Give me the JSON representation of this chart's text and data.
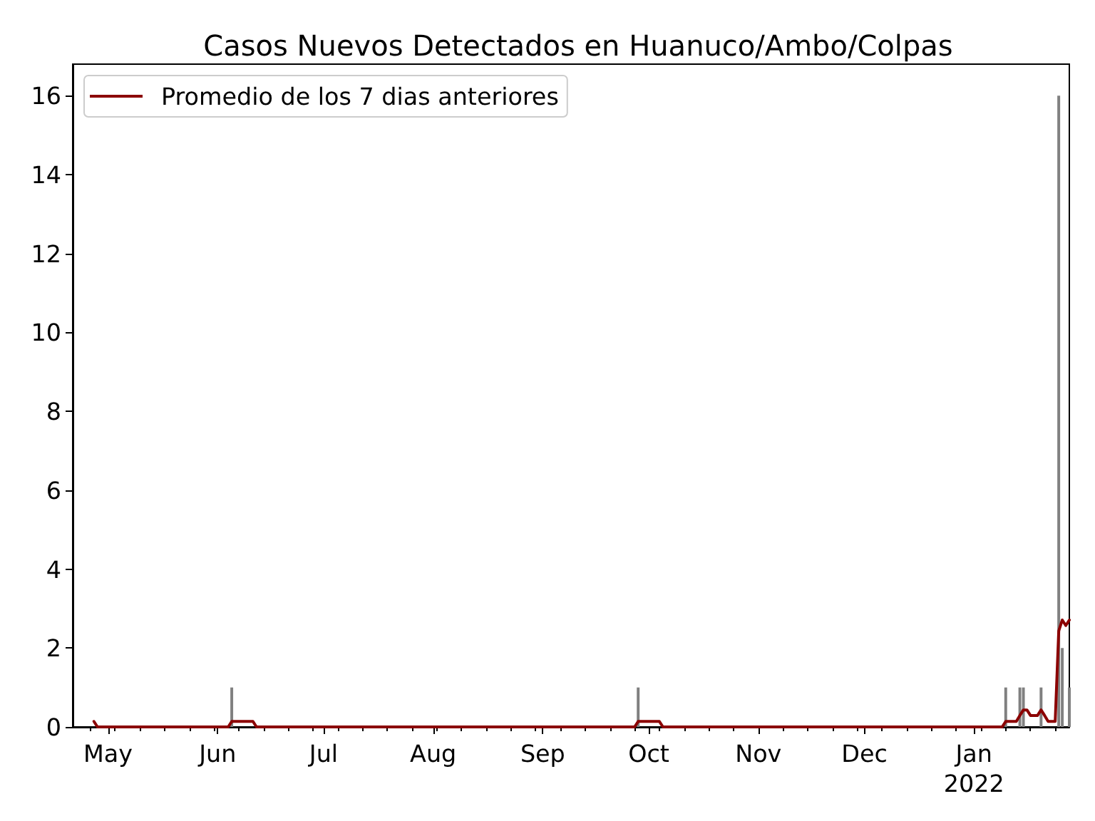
{
  "chart_data": {
    "type": "bar",
    "title": "Casos Nuevos Detectados en Huanuco/Ambo/Colpas",
    "xlim": [
      "2021-04-21",
      "2022-01-28"
    ],
    "xticks": [
      {
        "value": "2021-05-01",
        "label": "May"
      },
      {
        "value": "2021-06-01",
        "label": "Jun"
      },
      {
        "value": "2021-07-01",
        "label": "Jul"
      },
      {
        "value": "2021-08-01",
        "label": "Aug"
      },
      {
        "value": "2021-09-01",
        "label": "Sep"
      },
      {
        "value": "2021-10-01",
        "label": "Oct"
      },
      {
        "value": "2021-11-01",
        "label": "Nov"
      },
      {
        "value": "2021-12-01",
        "label": "Dec"
      },
      {
        "value": "2022-01-01",
        "label": "Jan\n2022"
      },
      {
        "value": "2021-04-26",
        "label": null
      },
      {
        "value": "2021-05-03",
        "label": null
      },
      {
        "value": "2021-05-10",
        "label": null
      },
      {
        "value": "2021-05-17",
        "label": null
      },
      {
        "value": "2021-05-24",
        "label": null
      },
      {
        "value": "2021-05-31",
        "label": null
      },
      {
        "value": "2021-06-07",
        "label": null
      },
      {
        "value": "2021-06-14",
        "label": null
      },
      {
        "value": "2021-06-21",
        "label": null
      },
      {
        "value": "2021-06-28",
        "label": null
      },
      {
        "value": "2021-07-05",
        "label": null
      },
      {
        "value": "2021-07-12",
        "label": null
      },
      {
        "value": "2021-07-19",
        "label": null
      },
      {
        "value": "2021-07-26",
        "label": null
      },
      {
        "value": "2021-08-02",
        "label": null
      },
      {
        "value": "2021-08-09",
        "label": null
      },
      {
        "value": "2021-08-16",
        "label": null
      },
      {
        "value": "2021-08-23",
        "label": null
      },
      {
        "value": "2021-08-30",
        "label": null
      },
      {
        "value": "2021-09-06",
        "label": null
      },
      {
        "value": "2021-09-13",
        "label": null
      },
      {
        "value": "2021-09-20",
        "label": null
      },
      {
        "value": "2021-09-27",
        "label": null
      },
      {
        "value": "2021-10-04",
        "label": null
      },
      {
        "value": "2021-10-11",
        "label": null
      },
      {
        "value": "2021-10-18",
        "label": null
      },
      {
        "value": "2021-10-25",
        "label": null
      },
      {
        "value": "2021-11-08",
        "label": null
      },
      {
        "value": "2021-11-15",
        "label": null
      },
      {
        "value": "2021-11-22",
        "label": null
      },
      {
        "value": "2021-11-29",
        "label": null
      },
      {
        "value": "2021-12-06",
        "label": null
      },
      {
        "value": "2021-12-13",
        "label": null
      },
      {
        "value": "2021-12-20",
        "label": null
      },
      {
        "value": "2021-12-27",
        "label": null
      },
      {
        "value": "2022-01-03",
        "label": null
      },
      {
        "value": "2022-01-10",
        "label": null
      },
      {
        "value": "2022-01-17",
        "label": null
      },
      {
        "value": "2022-01-24",
        "label": null
      }
    ],
    "ylim": [
      0,
      16.8
    ],
    "yticks": [
      0,
      2,
      4,
      6,
      8,
      10,
      12,
      14,
      16
    ],
    "legend": "top left",
    "series": [
      {
        "color": "#808080",
        "x": [
          "2021-06-05",
          "2021-09-28",
          "2022-01-10",
          "2022-01-14",
          "2022-01-15",
          "2022-01-20",
          "2022-01-25",
          "2022-01-26",
          "2022-01-28"
        ],
        "values": [
          1,
          1,
          1,
          1,
          1,
          1,
          16,
          2,
          1
        ]
      },
      {
        "type": "line",
        "name": "Promedio de los 7 dias anteriores",
        "color": "#8b0000",
        "line_style": "solid",
        "x": [
          "2021-04-27",
          "2021-04-28",
          "2021-06-04",
          "2021-06-05",
          "2021-06-11",
          "2021-06-12",
          "2021-09-27",
          "2021-09-28",
          "2021-10-04",
          "2021-10-05",
          "2022-01-09",
          "2022-01-10",
          "2022-01-13",
          "2022-01-14",
          "2022-01-15",
          "2022-01-16",
          "2022-01-17",
          "2022-01-19",
          "2022-01-20",
          "2022-01-21",
          "2022-01-22",
          "2022-01-24",
          "2022-01-25",
          "2022-01-26",
          "2022-01-27",
          "2022-01-28"
        ],
        "values": [
          0.14,
          0,
          0,
          0.14,
          0.14,
          0,
          0,
          0.14,
          0.14,
          0,
          0,
          0.14,
          0.14,
          0.29,
          0.43,
          0.43,
          0.29,
          0.29,
          0.43,
          0.29,
          0.14,
          0.14,
          2.43,
          2.71,
          2.57,
          2.71
        ]
      }
    ]
  }
}
